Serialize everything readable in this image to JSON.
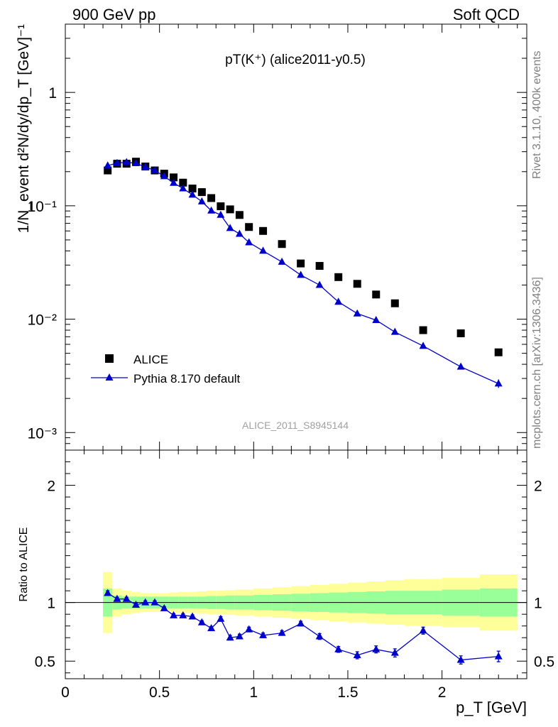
{
  "header": {
    "left": "900 GeV pp",
    "right": "Soft QCD"
  },
  "side_text": {
    "rivet": "Rivet 3.1.10,  400k events",
    "source": "mcplots.cern.ch [arXiv:1306.3436]"
  },
  "chart_data": [
    {
      "type": "scatter",
      "panel": "main",
      "title": "pT(K⁺) (alice2011-y0.5)",
      "ylabel": "1/N_event d²N/dy/dp_T [GeV]⁻¹",
      "xlabel": "",
      "xlim": [
        0,
        2.45
      ],
      "ylim": [
        0.0007,
        4
      ],
      "yscale": "log",
      "ytick_labels": [
        "10⁻³",
        "10⁻²",
        "10⁻¹",
        "1"
      ],
      "watermark": "ALICE_2011_S8945144",
      "legend_position": "middle-left",
      "colors": {
        "alice": "#000000",
        "pythia": "#0000cc"
      },
      "x": [
        0.225,
        0.275,
        0.325,
        0.375,
        0.425,
        0.475,
        0.525,
        0.575,
        0.625,
        0.675,
        0.725,
        0.775,
        0.825,
        0.875,
        0.925,
        0.975,
        1.05,
        1.15,
        1.25,
        1.35,
        1.45,
        1.55,
        1.65,
        1.75,
        1.9,
        2.1,
        2.3
      ],
      "series": [
        {
          "name": "ALICE",
          "marker": "square",
          "values": [
            0.205,
            0.235,
            0.235,
            0.245,
            0.222,
            0.205,
            0.192,
            0.178,
            0.16,
            0.142,
            0.132,
            0.117,
            0.099,
            0.093,
            0.083,
            0.065,
            0.06,
            0.046,
            0.031,
            0.0295,
            0.0235,
            0.0205,
            0.0165,
            0.0138,
            0.008,
            0.0075,
            0.0051
          ]
        },
        {
          "name": "Pythia 8.170 default",
          "marker": "triangle-line",
          "values": [
            0.226,
            0.238,
            0.242,
            0.237,
            0.22,
            0.205,
            0.182,
            0.159,
            0.142,
            0.125,
            0.109,
            0.0905,
            0.083,
            0.0635,
            0.0565,
            0.0475,
            0.04,
            0.032,
            0.0245,
            0.02,
            0.0142,
            0.0112,
            0.0098,
            0.0077,
            0.0058,
            0.0038,
            0.0027
          ]
        }
      ]
    },
    {
      "type": "line",
      "panel": "ratio",
      "xlabel": "p_T [GeV]",
      "ylabel": "Ratio to ALICE",
      "xlim": [
        0,
        2.45
      ],
      "ylim": [
        0.35,
        2.3
      ],
      "xtick_labels": [
        "0",
        "0.5",
        "1",
        "1.5",
        "2"
      ],
      "ytick_labels": [
        "0.5",
        "1",
        "2"
      ],
      "reference_line": 1,
      "colors": {
        "inner_band": "#99ff99",
        "outer_band": "#ffff99",
        "pythia": "#0000cc"
      },
      "x_edges": [
        0.2,
        0.25,
        0.3,
        0.35,
        0.4,
        0.45,
        0.5,
        0.55,
        0.6,
        0.65,
        0.7,
        0.75,
        0.8,
        0.85,
        0.9,
        0.95,
        1.0,
        1.1,
        1.2,
        1.3,
        1.4,
        1.5,
        1.6,
        1.7,
        1.8,
        2.0,
        2.2,
        2.4
      ],
      "inner_band_halfwidth": [
        0.12,
        0.06,
        0.05,
        0.05,
        0.05,
        0.05,
        0.05,
        0.05,
        0.05,
        0.05,
        0.05,
        0.055,
        0.055,
        0.06,
        0.06,
        0.06,
        0.065,
        0.07,
        0.075,
        0.08,
        0.085,
        0.09,
        0.095,
        0.1,
        0.1,
        0.11,
        0.12
      ],
      "outer_band_halfwidth": [
        0.26,
        0.12,
        0.1,
        0.09,
        0.08,
        0.08,
        0.08,
        0.085,
        0.09,
        0.09,
        0.095,
        0.1,
        0.1,
        0.105,
        0.11,
        0.11,
        0.12,
        0.13,
        0.14,
        0.15,
        0.16,
        0.17,
        0.18,
        0.19,
        0.2,
        0.21,
        0.24
      ],
      "x": [
        0.225,
        0.275,
        0.325,
        0.375,
        0.425,
        0.475,
        0.525,
        0.575,
        0.625,
        0.675,
        0.725,
        0.775,
        0.825,
        0.875,
        0.925,
        0.975,
        1.05,
        1.15,
        1.25,
        1.35,
        1.45,
        1.55,
        1.65,
        1.75,
        1.9,
        2.1,
        2.3
      ],
      "series": [
        {
          "name": "Pythia 8.170 default",
          "values": [
            1.08,
            1.03,
            1.03,
            0.98,
            1.0,
            1.0,
            0.95,
            0.89,
            0.89,
            0.88,
            0.83,
            0.78,
            0.86,
            0.7,
            0.71,
            0.77,
            0.72,
            0.74,
            0.82,
            0.71,
            0.6,
            0.55,
            0.6,
            0.57,
            0.76,
            0.51,
            0.54
          ],
          "errors": [
            0.02,
            0.015,
            0.015,
            0.015,
            0.015,
            0.015,
            0.015,
            0.015,
            0.015,
            0.015,
            0.015,
            0.015,
            0.02,
            0.02,
            0.02,
            0.02,
            0.02,
            0.02,
            0.02,
            0.025,
            0.025,
            0.03,
            0.03,
            0.035,
            0.03,
            0.035,
            0.045
          ]
        }
      ]
    }
  ]
}
